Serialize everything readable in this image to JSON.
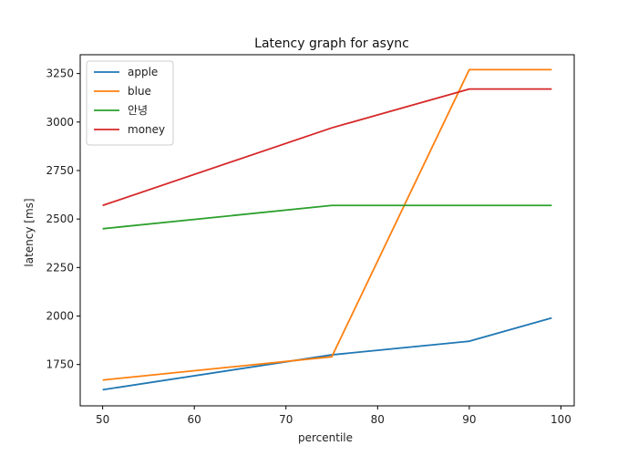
{
  "chart_data": {
    "type": "line",
    "title": "Latency graph for async",
    "xlabel": "percentile",
    "ylabel": "latency [ms]",
    "x": [
      50,
      75,
      90,
      99
    ],
    "xlim": [
      47.55,
      101.45
    ],
    "ylim": [
      1537,
      3347
    ],
    "xticks": [
      50,
      60,
      70,
      80,
      90,
      100
    ],
    "yticks": [
      1750,
      2000,
      2250,
      2500,
      2750,
      3000,
      3250
    ],
    "legend_position": "top-left",
    "grid": false,
    "series": [
      {
        "name": "apple",
        "color": "#1f77b4",
        "values": [
          1620,
          1800,
          1870,
          1990
        ]
      },
      {
        "name": "blue",
        "color": "#ff7f0e",
        "values": [
          1670,
          1790,
          3270,
          3270
        ]
      },
      {
        "name": "안녕",
        "color": "#2ca02c",
        "values": [
          2450,
          2570,
          2570,
          2570
        ]
      },
      {
        "name": "money",
        "color": "#d62728",
        "values": [
          2570,
          2970,
          3170,
          3170
        ]
      }
    ]
  }
}
